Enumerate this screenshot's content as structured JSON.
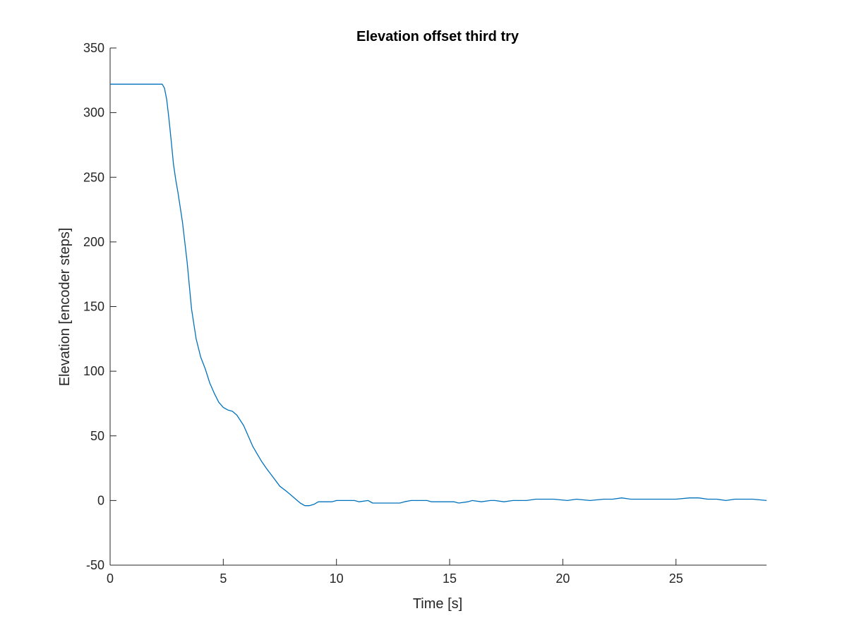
{
  "chart_data": {
    "type": "line",
    "title": "Elevation offset third try",
    "xlabel": "Time [s]",
    "ylabel": "Elevation [encoder steps]",
    "xlim": [
      0,
      29
    ],
    "ylim": [
      -50,
      350
    ],
    "xticks": [
      0,
      5,
      10,
      15,
      20,
      25
    ],
    "yticks": [
      -50,
      0,
      50,
      100,
      150,
      200,
      250,
      300,
      350
    ],
    "grid": false,
    "legend": "none",
    "line_color": "#0072BD",
    "series": [
      {
        "x": [
          0,
          2.3,
          2.4,
          2.5,
          2.6,
          2.7,
          2.8,
          2.9,
          3.0,
          3.2,
          3.4,
          3.6,
          3.8,
          4.0,
          4.2,
          4.4,
          4.6,
          4.8,
          5.0,
          5.2,
          5.4,
          5.6,
          5.9,
          6.1,
          6.3,
          6.5,
          6.7,
          6.9,
          7.2,
          7.5,
          7.8,
          8.0,
          8.2,
          8.4,
          8.6,
          8.8,
          9.0,
          9.2,
          9.8,
          10.0,
          10.2,
          10.8,
          11.0,
          11.4,
          11.6,
          11.8,
          12.8,
          13.0,
          13.3,
          13.6,
          14.0,
          14.2,
          14.8,
          15.2,
          15.4,
          15.8,
          16.0,
          16.4,
          16.8,
          17.0,
          17.4,
          17.8,
          18.0,
          18.4,
          18.8,
          19.2,
          19.6,
          20.2,
          20.6,
          21.2,
          21.8,
          22.2,
          22.6,
          23.0,
          23.4,
          23.8,
          24.2,
          25.0,
          25.6,
          26.0,
          26.4,
          26.8,
          27.2,
          27.6,
          28.0,
          28.4,
          29.0
        ],
        "values": [
          322,
          322,
          319,
          310,
          295,
          278,
          260,
          248,
          238,
          215,
          185,
          148,
          125,
          111,
          102,
          91,
          83,
          76,
          72,
          70,
          69,
          66,
          58,
          50,
          42,
          36,
          30,
          25,
          18,
          11,
          7,
          4,
          1,
          -2,
          -4,
          -4,
          -3,
          -1,
          -1,
          0,
          0,
          0,
          -1,
          0,
          -2,
          -2,
          -2,
          -1,
          0,
          0,
          0,
          -1,
          -1,
          -1,
          -2,
          -1,
          0,
          -1,
          0,
          0,
          -1,
          0,
          0,
          0,
          1,
          1,
          1,
          0,
          1,
          0,
          1,
          1,
          2,
          1,
          1,
          1,
          1,
          1,
          2,
          2,
          1,
          1,
          0,
          1,
          1,
          1,
          0
        ]
      }
    ]
  }
}
